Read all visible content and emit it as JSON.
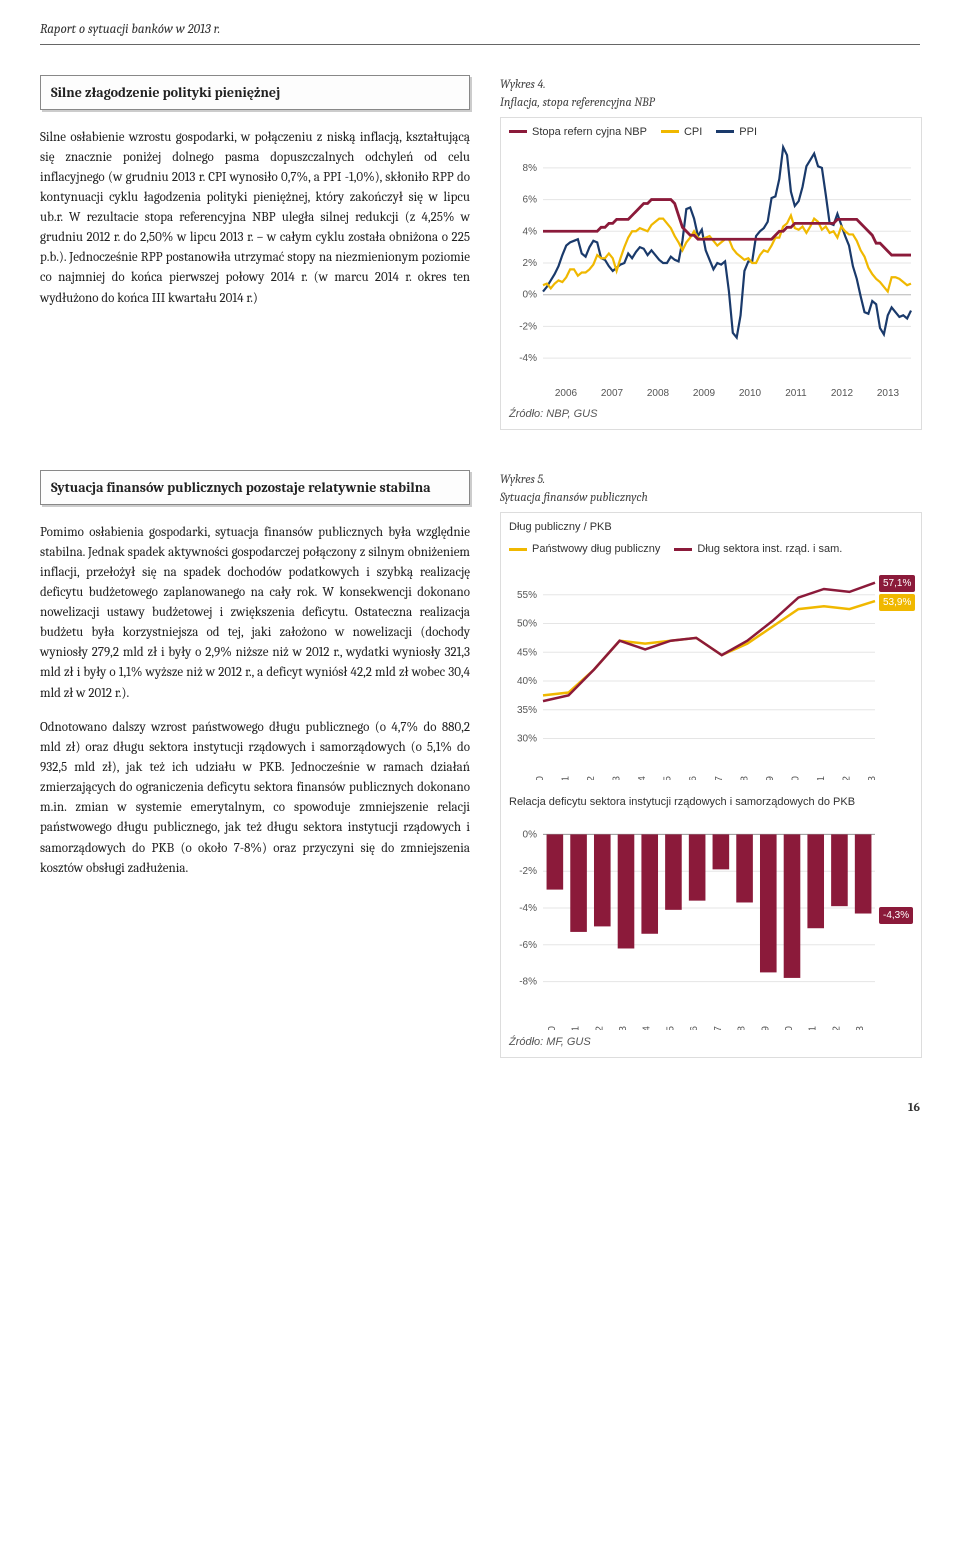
{
  "page_header": "Raport o sytuacji banków w 2013 r.",
  "page_number": "16",
  "section1": {
    "heading": "Silne złagodzenie polityki pieniężnej",
    "body": "Silne osłabienie wzrostu gospodarki, w połączeniu z niską inflacją, kształtującą się znacznie poniżej dolnego pasma dopuszczalnych odchyleń od celu inflacyjnego (w grudniu 2013 r. CPI wynosiło 0,7%, a PPI -1,0%), skłoniło RPP do kontynuacji cyklu łagodzenia polityki pieniężnej, który zakończył się w lipcu ub.r. W rezultacie stopa referencyjna NBP uległa silnej redukcji (z 4,25% w grudniu 2012 r. do 2,50% w lipcu 2013 r. – w całym cyklu została obniżona o 225 p.b.). Jednocześnie RPP postanowiła utrzymać stopy na niezmienionym poziomie co najmniej do końca pierwszej połowy 2014 r. (w marcu 2014 r. okres ten wydłużono do końca III kwartału 2014 r.)",
    "chart": {
      "label": "Wykres 4.",
      "title": "Inflacja, stopa referencyjna NBP",
      "type": "line",
      "legend": [
        {
          "label": "Stopa refern cyjna NBP",
          "color": "#8b1a3a"
        },
        {
          "label": "CPI",
          "color": "#f0b800"
        },
        {
          "label": "PPI",
          "color": "#1a3a6b"
        }
      ],
      "x_labels": [
        "2006",
        "2007",
        "2008",
        "2009",
        "2010",
        "2011",
        "2012",
        "2013"
      ],
      "y_ticks": [
        "-4%",
        "-2%",
        "0%",
        "2%",
        "4%",
        "6%",
        "8%"
      ],
      "ylim": [
        -5,
        9
      ],
      "x_count": 96,
      "series": {
        "nbp": [
          4.0,
          4.0,
          4.0,
          4.0,
          4.0,
          4.0,
          4.0,
          4.0,
          4.0,
          4.0,
          4.0,
          4.0,
          4.0,
          4.0,
          4.0,
          4.25,
          4.25,
          4.5,
          4.5,
          4.75,
          4.75,
          4.75,
          4.75,
          5.0,
          5.25,
          5.5,
          5.75,
          5.75,
          6.0,
          6.0,
          6.0,
          6.0,
          6.0,
          6.0,
          5.75,
          5.0,
          4.25,
          4.0,
          3.75,
          3.75,
          3.5,
          3.5,
          3.5,
          3.5,
          3.5,
          3.5,
          3.5,
          3.5,
          3.5,
          3.5,
          3.5,
          3.5,
          3.5,
          3.5,
          3.5,
          3.5,
          3.5,
          3.5,
          3.5,
          3.5,
          3.75,
          4.0,
          4.0,
          4.25,
          4.25,
          4.5,
          4.5,
          4.5,
          4.5,
          4.5,
          4.5,
          4.5,
          4.5,
          4.5,
          4.5,
          4.5,
          4.75,
          4.75,
          4.75,
          4.75,
          4.75,
          4.75,
          4.5,
          4.25,
          4.0,
          3.75,
          3.25,
          3.25,
          3.0,
          2.75,
          2.5,
          2.5,
          2.5,
          2.5,
          2.5,
          2.5
        ],
        "cpi": [
          0.6,
          0.7,
          0.4,
          0.7,
          0.9,
          0.8,
          1.1,
          1.6,
          1.6,
          1.2,
          1.4,
          1.4,
          1.6,
          1.9,
          2.5,
          2.3,
          2.3,
          2.6,
          2.3,
          1.5,
          2.3,
          3.0,
          3.6,
          4.0,
          4.0,
          4.2,
          4.1,
          4.0,
          4.4,
          4.6,
          4.8,
          4.8,
          4.5,
          4.2,
          3.7,
          3.3,
          2.8,
          3.3,
          3.6,
          4.0,
          3.6,
          3.5,
          3.6,
          3.7,
          3.4,
          3.1,
          3.3,
          3.5,
          3.5,
          2.9,
          2.6,
          2.4,
          2.2,
          2.3,
          2.0,
          2.0,
          2.5,
          2.8,
          2.7,
          3.1,
          3.6,
          3.6,
          4.3,
          4.5,
          5.0,
          4.2,
          4.1,
          4.3,
          3.9,
          4.3,
          4.8,
          4.6,
          4.1,
          4.3,
          3.9,
          4.0,
          3.6,
          4.3,
          4.0,
          3.8,
          3.8,
          3.4,
          2.8,
          2.4,
          1.7,
          1.3,
          1.0,
          0.8,
          0.5,
          0.2,
          1.1,
          1.1,
          1.0,
          0.8,
          0.6,
          0.7
        ],
        "ppi": [
          0.2,
          0.5,
          0.9,
          1.3,
          1.8,
          2.5,
          3.1,
          3.3,
          3.4,
          3.5,
          2.6,
          2.4,
          3.0,
          3.4,
          3.3,
          2.3,
          2.2,
          1.8,
          1.5,
          1.7,
          1.9,
          2.0,
          2.6,
          2.3,
          2.7,
          3.0,
          2.9,
          2.5,
          2.8,
          2.5,
          2.2,
          2.0,
          2.0,
          2.4,
          2.2,
          2.1,
          3.4,
          5.4,
          5.5,
          4.8,
          3.7,
          4.1,
          2.8,
          2.2,
          1.6,
          2.0,
          1.9,
          2.1,
          0.2,
          -2.4,
          -2.7,
          -1.3,
          1.5,
          2.1,
          2.1,
          3.7,
          4.0,
          4.2,
          4.6,
          6.1,
          6.2,
          7.3,
          9.3,
          8.8,
          6.5,
          5.6,
          5.9,
          6.8,
          8.1,
          8.5,
          8.9,
          8.1,
          8.0,
          6.3,
          4.5,
          4.4,
          5.1,
          4.4,
          3.7,
          3.1,
          1.8,
          1.0,
          -0.1,
          -1.1,
          -1.2,
          -0.4,
          -0.6,
          -2.1,
          -2.5,
          -1.3,
          -0.8,
          -1.1,
          -1.4,
          -1.3,
          -1.5,
          -1.0
        ]
      },
      "grid_color": "#e5e5e5",
      "axis_color": "#999",
      "background": "#ffffff",
      "tick_fontsize": 10,
      "source": "Źródło: NBP, GUS"
    }
  },
  "section2": {
    "heading": "Sytuacja finansów publicznych pozostaje relatywnie stabilna",
    "body1": "Pomimo osłabienia gospodarki, sytuacja finansów publicznych była względnie stabilna. Jednak spadek aktywności gospodarczej połączony z silnym obniżeniem inflacji, przełożył się na spadek dochodów podatkowych i szybką realizację deficytu budżetowego zaplanowanego na cały rok. W konsekwencji dokonano nowelizacji ustawy budżetowej i zwiększenia deficytu. Ostateczna realizacja budżetu była korzystniejsza od tej, jaki założono w nowelizacji (dochody wyniosły 279,2 mld zł i były o 2,9% niższe niż w 2012 r., wydatki wyniosły 321,3 mld zł i były o 1,1% wyższe niż w 2012 r., a deficyt wyniósł 42,2 mld zł wobec 30,4 mld zł w 2012 r.).",
    "body2": "Odnotowano dalszy wzrost państwowego długu publicznego (o 4,7% do 880,2 mld zł) oraz długu sektora instytucji rządowych i samorządowych (o 5,1% do 932,5 mld zł), jak też ich udziału w PKB. Jednocześnie w ramach działań zmierzających do ograniczenia deficytu sektora finansów publicznych dokonano m.in. zmian w systemie emerytalnym, co spowoduje zmniejszenie relacji państwowego długu publicznego, jak też długu sektora instytucji rządowych i samorządowych do PKB (o około 7-8%) oraz przyczyni się do zmniejszenia kosztów obsługi zadłużenia.",
    "chart": {
      "label": "Wykres 5.",
      "title": "Sytuacja finansów publicznych",
      "debt_chart": {
        "subtitle": "Dług publiczny / PKB",
        "legend": [
          {
            "label": "Państwowy dług publiczny",
            "color": "#f0b800"
          },
          {
            "label": "Dług sektora inst. rząd. i sam.",
            "color": "#8b1a3a"
          }
        ],
        "x_labels": [
          "2000",
          "2001",
          "2002",
          "2003",
          "2004",
          "2005",
          "2006",
          "2007",
          "2008",
          "2009",
          "2010",
          "2011",
          "2012",
          "2013"
        ],
        "y_ticks": [
          "30%",
          "35%",
          "40%",
          "45%",
          "50%",
          "55%"
        ],
        "ylim": [
          28,
          60
        ],
        "series": {
          "panstwowy": [
            37.5,
            38.0,
            42.0,
            47.0,
            46.5,
            47.0,
            47.5,
            44.5,
            46.5,
            49.5,
            52.5,
            53.0,
            52.5,
            53.9
          ],
          "sektor": [
            36.5,
            37.5,
            42.0,
            47.0,
            45.5,
            47.0,
            47.5,
            44.5,
            47.0,
            50.5,
            54.5,
            56.0,
            55.5,
            57.1
          ]
        },
        "badges": [
          {
            "text": "57,1%",
            "color": "#8b1a3a"
          },
          {
            "text": "53,9%",
            "color": "#f0b800"
          }
        ],
        "grid_color": "#e5e5e5",
        "axis_color": "#999",
        "background": "#ffffff",
        "tick_fontsize": 10
      },
      "deficit_chart": {
        "subtitle": "Relacja deficytu sektora instytucji rządowych i samorządowych do PKB",
        "x_labels": [
          "2000",
          "2001",
          "2002",
          "2003",
          "2004",
          "2005",
          "2006",
          "2007",
          "2008",
          "2009",
          "2010",
          "2011",
          "2012",
          "2013"
        ],
        "y_ticks": [
          "-8%",
          "-6%",
          "-4%",
          "-2%",
          "0%"
        ],
        "ylim": [
          -9,
          1
        ],
        "values": [
          -3.0,
          -5.3,
          -5.0,
          -6.2,
          -5.4,
          -4.1,
          -3.6,
          -1.9,
          -3.7,
          -7.5,
          -7.8,
          -5.1,
          -3.9,
          -4.3
        ],
        "bar_color": "#8b1a3a",
        "badge": {
          "text": "-4,3%",
          "color": "#8b1a3a"
        },
        "grid_color": "#e5e5e5",
        "axis_color": "#999",
        "background": "#ffffff",
        "tick_fontsize": 10
      },
      "source": "Źródło: MF, GUS"
    }
  }
}
